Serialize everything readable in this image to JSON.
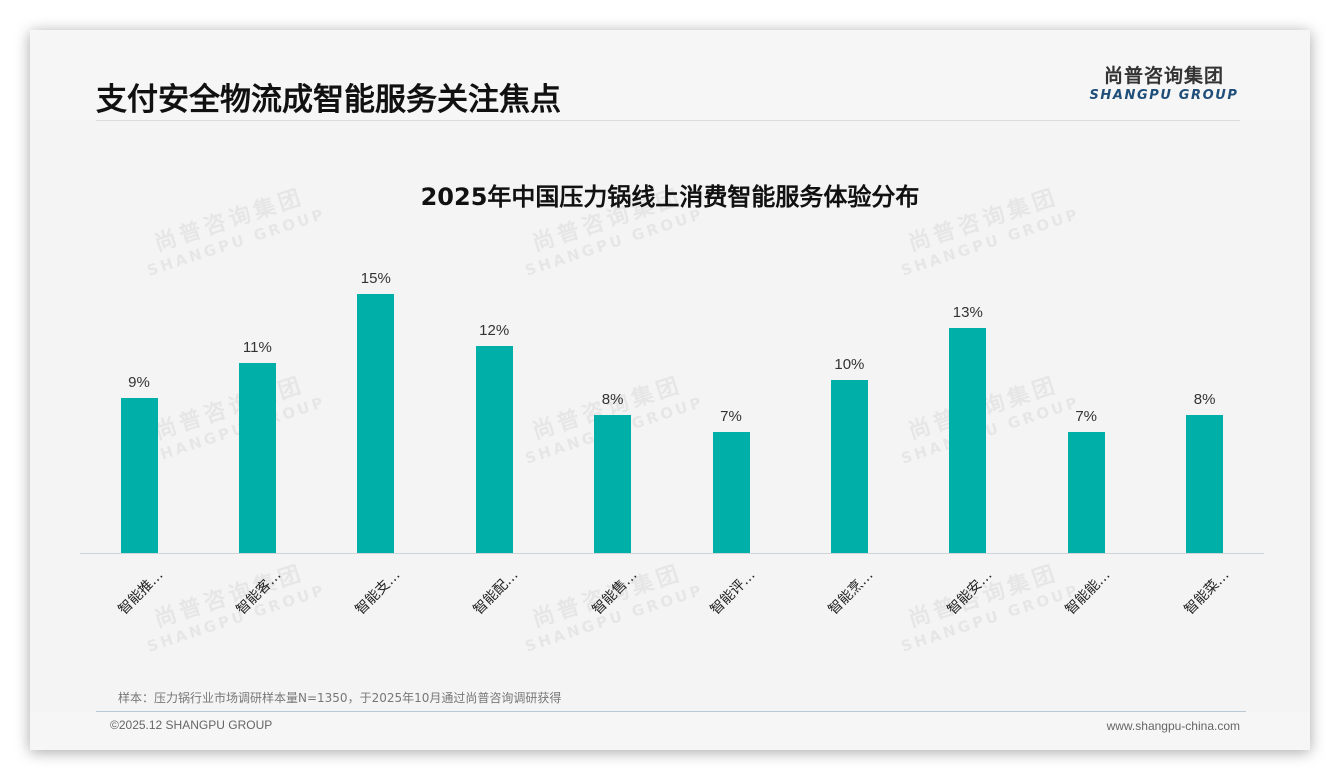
{
  "header": {
    "title": "支付安全物流成智能服务关注焦点",
    "logo_cn": "尚普咨询集团",
    "logo_en": "SHANGPU GROUP"
  },
  "watermark": {
    "cn": "尚普咨询集团",
    "en": "SHANGPU GROUP"
  },
  "footer": {
    "sample_note": "样本：压力锅行业市场调研样本量N=1350，于2025年10月通过尚普咨询调研获得",
    "copyright": "©2025.12 SHANGPU GROUP",
    "website": "www.shangpu-china.com"
  },
  "colors": {
    "bar": "#00b0a8",
    "logo_en": "#1f4e79",
    "background": "#f4f4f4"
  },
  "chart_data": {
    "type": "bar",
    "title": "2025年中国压力锅线上消费智能服务体验分布",
    "categories": [
      "智能推…",
      "智能客…",
      "智能支…",
      "智能配…",
      "智能售…",
      "智能评…",
      "智能烹…",
      "智能安…",
      "智能能…",
      "智能菜…"
    ],
    "values": [
      9,
      11,
      15,
      12,
      8,
      7,
      10,
      13,
      7,
      8
    ],
    "value_labels": [
      "9%",
      "11%",
      "15%",
      "12%",
      "8%",
      "7%",
      "10%",
      "13%",
      "7%",
      "8%"
    ],
    "unit": "%",
    "xlabel": "",
    "ylabel": "",
    "ylim": [
      0,
      15
    ],
    "grid": false,
    "legend": null,
    "x_tick_rotation": -45
  }
}
